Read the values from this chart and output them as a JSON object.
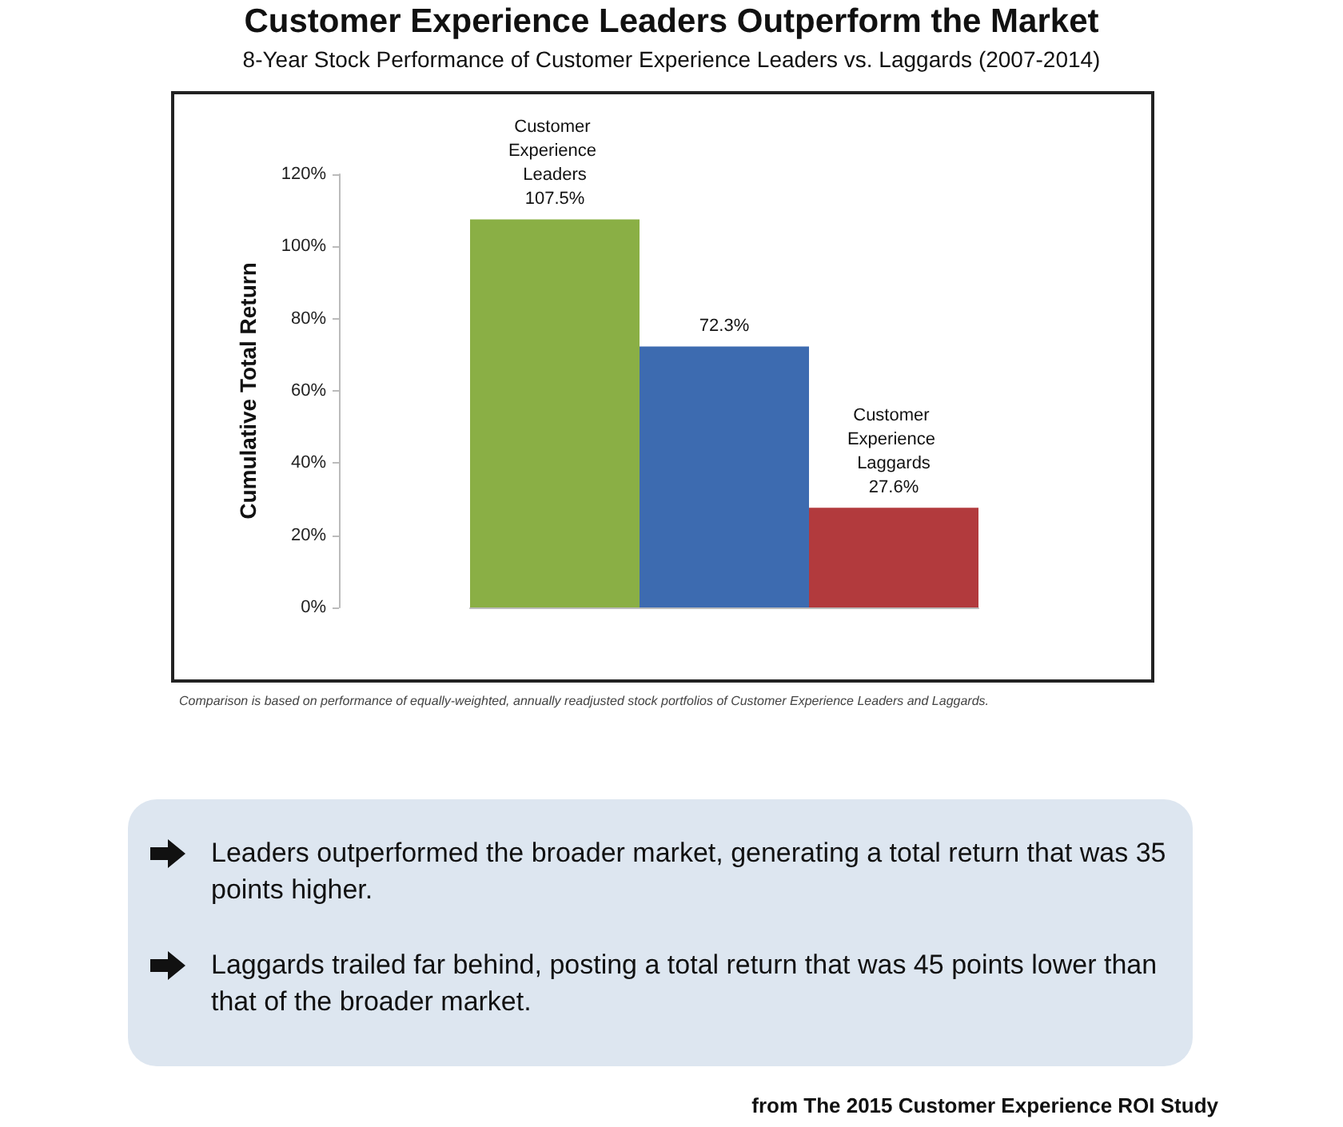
{
  "chart_data": {
    "type": "bar",
    "title": "Customer Experience Leaders Outperform the Market",
    "subtitle": "8-Year Stock Performance of Customer Experience Leaders vs. Laggards (2007-2014)",
    "ylabel": "Cumulative Total Return",
    "categories": [
      "Customer Experience Leaders",
      null,
      "Customer Experience Laggards"
    ],
    "values": [
      107.5,
      72.3,
      27.6
    ],
    "colors": [
      "#8aaf45",
      "#3d6bb0",
      "#b23a3d"
    ],
    "value_labels": [
      "107.5%",
      "72.3%",
      "27.6%"
    ],
    "ylim": [
      0,
      120
    ],
    "yticks": [
      {
        "value": 0,
        "label": "0%"
      },
      {
        "value": 20,
        "label": "20%"
      },
      {
        "value": 40,
        "label": "40%"
      },
      {
        "value": 60,
        "label": "60%"
      },
      {
        "value": 80,
        "label": "80%"
      },
      {
        "value": 100,
        "label": "100%"
      },
      {
        "value": 120,
        "label": "120%"
      }
    ],
    "grid": false,
    "tick_labels": "y",
    "annotations": [
      "Comparison is based on performance of equally-weighted, annually readjusted stock portfolios of Customer Experience Leaders and Laggards.",
      "Leaders outperformed the broader market, generating a total return that was 35 points higher.",
      "Laggards trailed far behind, posting a total return that was 45 points lower than that of the broader market.",
      "from The 2015 Customer Experience ROI Study"
    ]
  }
}
